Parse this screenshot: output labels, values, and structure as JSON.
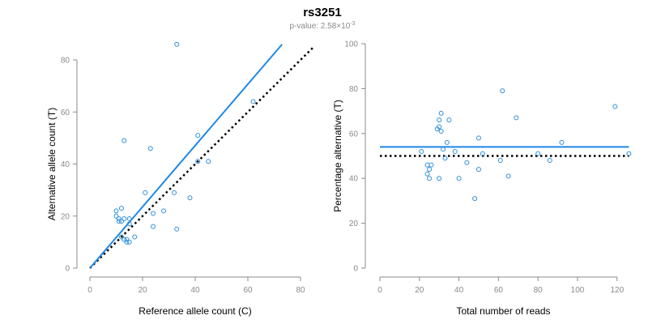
{
  "figure": {
    "title": "rs3251",
    "subtitle_prefix": "p-value: 2.58×10",
    "subtitle_exponent": "-3"
  },
  "colors": {
    "series": "#2E8FD8",
    "fit_line": "#1E88E5",
    "reference_line": "#000000",
    "axis": "#8a8a8a"
  },
  "chart_data": [
    {
      "type": "scatter",
      "xlabel": "Reference allele count (C)",
      "ylabel": "Alternative allele count (T)",
      "xlim": [
        0,
        80
      ],
      "ylim": [
        0,
        80
      ],
      "xticks": [
        0,
        20,
        40,
        60,
        80
      ],
      "yticks": [
        0,
        20,
        40,
        60,
        80
      ],
      "grid": false,
      "points": [
        {
          "x": 33,
          "y": 86
        },
        {
          "x": 13,
          "y": 49
        },
        {
          "x": 23,
          "y": 46
        },
        {
          "x": 41,
          "y": 51
        },
        {
          "x": 62,
          "y": 64
        },
        {
          "x": 45,
          "y": 41
        },
        {
          "x": 41,
          "y": 41
        },
        {
          "x": 21,
          "y": 29
        },
        {
          "x": 32,
          "y": 29
        },
        {
          "x": 38,
          "y": 27
        },
        {
          "x": 10,
          "y": 22
        },
        {
          "x": 12,
          "y": 23
        },
        {
          "x": 10,
          "y": 20
        },
        {
          "x": 11,
          "y": 19
        },
        {
          "x": 12,
          "y": 18
        },
        {
          "x": 11,
          "y": 18
        },
        {
          "x": 13,
          "y": 19
        },
        {
          "x": 15,
          "y": 19
        },
        {
          "x": 15,
          "y": 17
        },
        {
          "x": 24,
          "y": 21
        },
        {
          "x": 28,
          "y": 22
        },
        {
          "x": 24,
          "y": 16
        },
        {
          "x": 33,
          "y": 15
        },
        {
          "x": 17,
          "y": 12
        },
        {
          "x": 12,
          "y": 12
        },
        {
          "x": 13,
          "y": 11
        },
        {
          "x": 14,
          "y": 11
        },
        {
          "x": 14,
          "y": 10
        },
        {
          "x": 15,
          "y": 10
        }
      ],
      "fit_line": {
        "x": [
          0,
          73
        ],
        "y": [
          0,
          86
        ]
      },
      "reference_line": {
        "x": [
          0,
          85
        ],
        "y": [
          0,
          85
        ]
      }
    },
    {
      "type": "scatter",
      "xlabel": "Total number of reads",
      "ylabel": "Percentage alternative (T)",
      "xlim": [
        0,
        125
      ],
      "ylim": [
        0,
        100
      ],
      "xticks": [
        0,
        20,
        40,
        60,
        80,
        100,
        120
      ],
      "yticks": [
        0,
        20,
        40,
        60,
        80,
        100
      ],
      "grid": false,
      "points": [
        {
          "x": 21,
          "y": 52
        },
        {
          "x": 24,
          "y": 46
        },
        {
          "x": 24,
          "y": 42
        },
        {
          "x": 25,
          "y": 40
        },
        {
          "x": 26,
          "y": 46
        },
        {
          "x": 25,
          "y": 44
        },
        {
          "x": 29,
          "y": 62
        },
        {
          "x": 30,
          "y": 63
        },
        {
          "x": 31,
          "y": 61
        },
        {
          "x": 30,
          "y": 66
        },
        {
          "x": 31,
          "y": 69
        },
        {
          "x": 30,
          "y": 40
        },
        {
          "x": 32,
          "y": 53
        },
        {
          "x": 33,
          "y": 49
        },
        {
          "x": 34,
          "y": 56
        },
        {
          "x": 35,
          "y": 66
        },
        {
          "x": 38,
          "y": 52
        },
        {
          "x": 40,
          "y": 40
        },
        {
          "x": 44,
          "y": 47
        },
        {
          "x": 48,
          "y": 31
        },
        {
          "x": 50,
          "y": 58
        },
        {
          "x": 50,
          "y": 44
        },
        {
          "x": 52,
          "y": 51
        },
        {
          "x": 61,
          "y": 48
        },
        {
          "x": 62,
          "y": 79
        },
        {
          "x": 65,
          "y": 41
        },
        {
          "x": 69,
          "y": 67
        },
        {
          "x": 80,
          "y": 51
        },
        {
          "x": 86,
          "y": 48
        },
        {
          "x": 92,
          "y": 56
        },
        {
          "x": 119,
          "y": 72
        },
        {
          "x": 126,
          "y": 51
        }
      ],
      "fit_line": {
        "x": [
          0,
          126
        ],
        "y": [
          54,
          54
        ]
      },
      "reference_line": {
        "x": [
          0,
          126
        ],
        "y": [
          50,
          50
        ]
      }
    }
  ]
}
